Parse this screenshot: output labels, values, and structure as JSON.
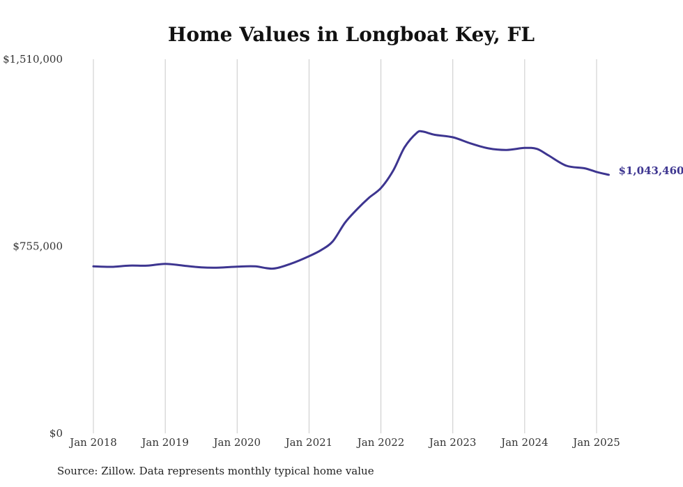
{
  "chart_data": {
    "type": "line",
    "title": "Home Values in Longboat Key, FL",
    "xlabel": "",
    "ylabel": "",
    "ylim": [
      0,
      1510000
    ],
    "y_ticks": [
      "$0",
      "$755,000",
      "$1,510,000"
    ],
    "y_tick_values": [
      0,
      755000,
      1510000
    ],
    "x_ticks": [
      "Jan 2018",
      "Jan 2019",
      "Jan 2020",
      "Jan 2021",
      "Jan 2022",
      "Jan 2023",
      "Jan 2024",
      "Jan 2025"
    ],
    "x_tick_values": [
      2018,
      2019,
      2020,
      2021,
      2022,
      2023,
      2024,
      2025
    ],
    "grid": "vertical",
    "line_color": "#3d3590",
    "series": [
      {
        "x": [
          2018.0,
          2018.25,
          2018.5,
          2018.75,
          2019.0,
          2019.25,
          2019.5,
          2019.75,
          2020.0,
          2020.25,
          2020.5,
          2020.75,
          2021.0,
          2021.17,
          2021.33,
          2021.5,
          2021.67,
          2021.83,
          2022.0,
          2022.17,
          2022.33,
          2022.5,
          2022.58,
          2022.75,
          2023.0,
          2023.25,
          2023.5,
          2023.75,
          2024.0,
          2024.17,
          2024.33,
          2024.58,
          2024.83,
          2025.0,
          2025.17
        ],
        "values": [
          674000,
          672000,
          677000,
          677000,
          684000,
          677000,
          670000,
          669000,
          673000,
          674000,
          665000,
          685000,
          715000,
          740000,
          775000,
          850000,
          905000,
          950000,
          990000,
          1060000,
          1155000,
          1213000,
          1218000,
          1205000,
          1195000,
          1170000,
          1150000,
          1144000,
          1152000,
          1148000,
          1122000,
          1080000,
          1070000,
          1055000,
          1043460
        ]
      }
    ],
    "end_label": "$1,043,460",
    "source": "Source: Zillow. Data represents monthly typical home value"
  }
}
